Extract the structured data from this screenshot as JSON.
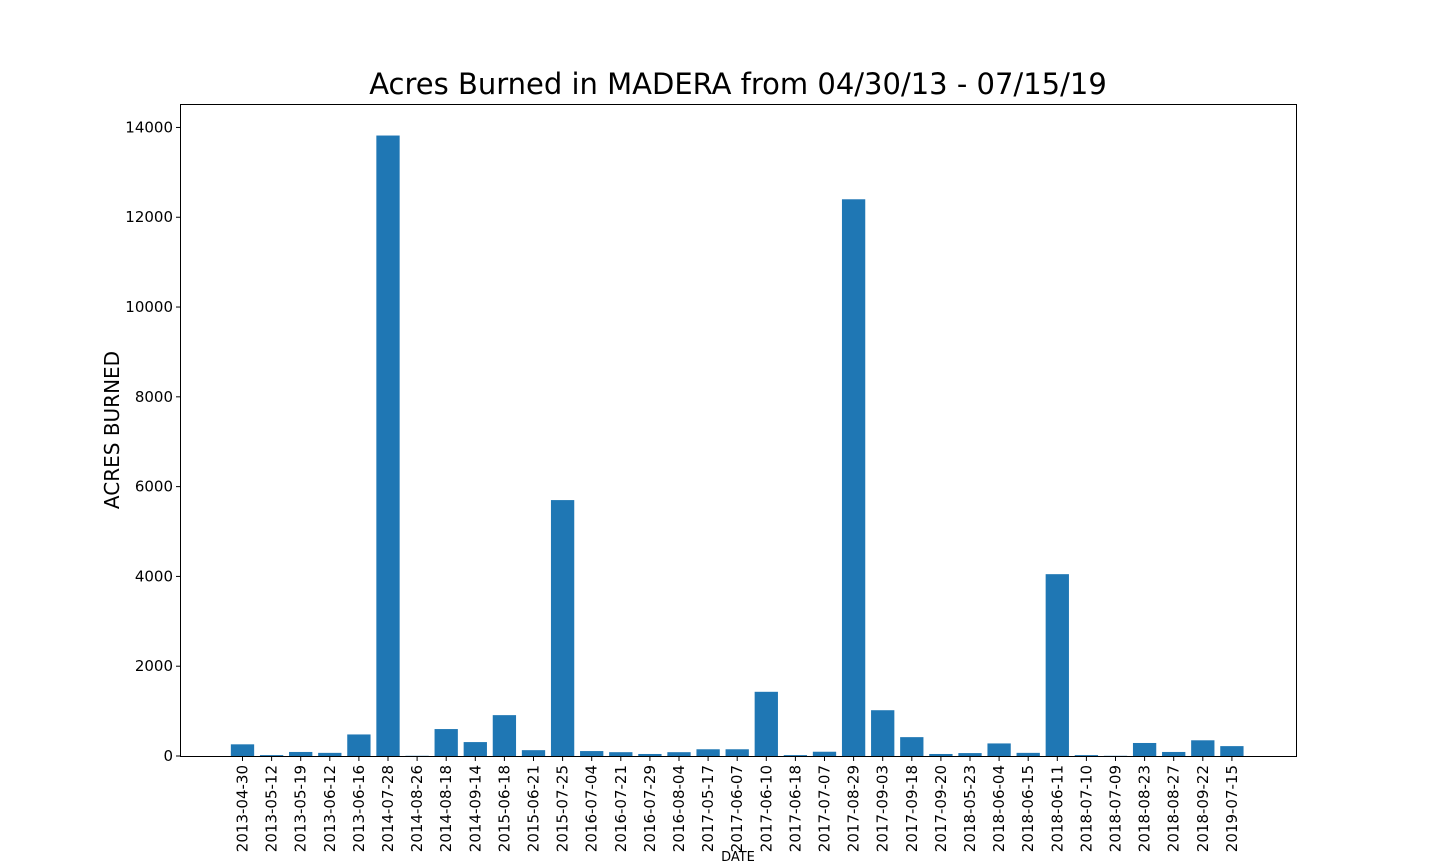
{
  "chart_data": {
    "type": "bar",
    "title": "Acres Burned in MADERA from 04/30/13 - 07/15/19",
    "xlabel": "DATE",
    "ylabel": "ACRES BURNED",
    "ylim": [
      0,
      14500
    ],
    "yticks": [
      0,
      2000,
      4000,
      6000,
      8000,
      10000,
      12000,
      14000
    ],
    "grid": false,
    "bar_color": "#1f77b4",
    "categories": [
      "2013-04-30",
      "2013-05-12",
      "2013-05-19",
      "2013-06-12",
      "2013-06-16",
      "2014-07-28",
      "2014-08-26",
      "2014-08-18",
      "2014-09-14",
      "2015-06-18",
      "2015-06-21",
      "2015-07-25",
      "2016-07-04",
      "2016-07-21",
      "2016-07-29",
      "2016-08-04",
      "2017-05-17",
      "2017-06-07",
      "2017-06-10",
      "2017-06-18",
      "2017-07-07",
      "2017-08-29",
      "2017-09-03",
      "2017-09-18",
      "2017-09-20",
      "2018-05-23",
      "2018-06-04",
      "2018-06-15",
      "2018-06-11",
      "2018-07-10",
      "2018-07-09",
      "2018-08-23",
      "2018-08-27",
      "2018-09-22",
      "2019-07-15"
    ],
    "values": [
      260,
      20,
      90,
      70,
      480,
      13820,
      5,
      600,
      310,
      910,
      130,
      5700,
      110,
      85,
      45,
      85,
      150,
      150,
      1430,
      20,
      95,
      12400,
      1020,
      420,
      45,
      65,
      280,
      70,
      4050,
      20,
      5,
      290,
      90,
      350,
      220
    ]
  }
}
